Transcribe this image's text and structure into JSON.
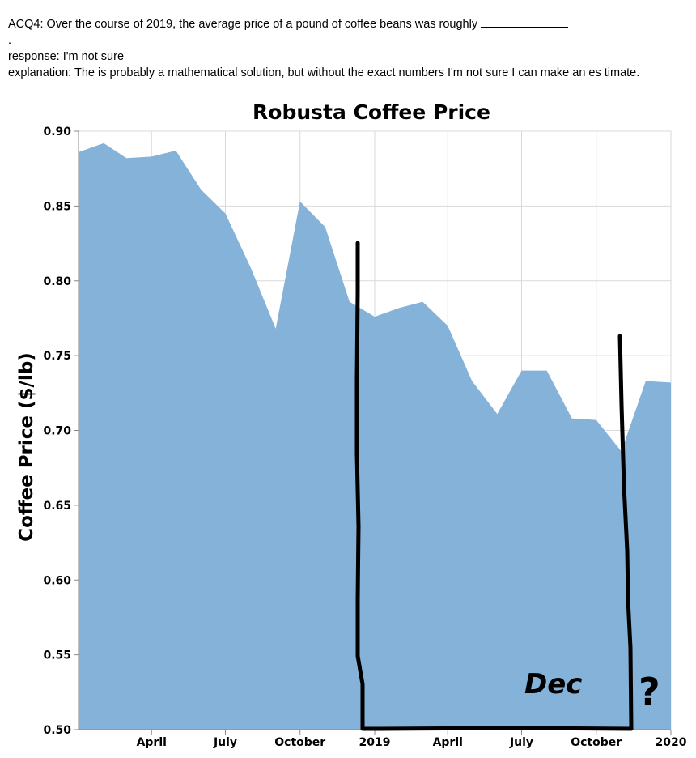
{
  "question": {
    "prefix": "ACQ4: Over the course of 2019, the average price of a pound of coffee beans was roughly",
    "period": "."
  },
  "response": "response: I'm not sure",
  "explanation": "explanation: The is probably a mathematical solution, but without the exact numbers I'm not sure I can make an es timate.",
  "annotation": {
    "month": "Dec",
    "mark": "?"
  },
  "colors": {
    "area": "#85b2d8",
    "grid": "#d9d9d9",
    "ink": "#000000"
  },
  "chart_data": {
    "type": "area",
    "title": "Robusta Coffee Price",
    "xlabel": "",
    "ylabel": "Coffee Price ($/lb)",
    "ylim": [
      0.5,
      0.9
    ],
    "y_ticks": [
      "0.50",
      "0.55",
      "0.60",
      "0.65",
      "0.70",
      "0.75",
      "0.80",
      "0.85",
      "0.90"
    ],
    "x_ticks": [
      {
        "label": "April",
        "date": "2018-04-01"
      },
      {
        "label": "July",
        "date": "2018-07-01"
      },
      {
        "label": "October",
        "date": "2018-10-01"
      },
      {
        "label": "2019",
        "date": "2019-01-01"
      },
      {
        "label": "April",
        "date": "2019-04-01"
      },
      {
        "label": "July",
        "date": "2019-07-01"
      },
      {
        "label": "October",
        "date": "2019-10-01"
      },
      {
        "label": "2020",
        "date": "2020-01-01"
      }
    ],
    "xlim": [
      "2018-01-01",
      "2020-01-01"
    ],
    "grid": true,
    "series": [
      {
        "x": [
          "2018-01-01",
          "2018-02-01",
          "2018-03-01",
          "2018-04-01",
          "2018-05-01",
          "2018-06-01",
          "2018-07-01",
          "2018-08-01",
          "2018-09-01",
          "2018-10-01",
          "2018-11-01",
          "2018-12-01",
          "2019-01-01",
          "2019-02-01",
          "2019-03-01",
          "2019-04-01",
          "2019-05-01",
          "2019-06-01",
          "2019-07-01",
          "2019-08-01",
          "2019-09-01",
          "2019-10-01",
          "2019-11-01",
          "2019-12-01",
          "2020-01-01"
        ],
        "values": [
          0.886,
          0.892,
          0.882,
          0.883,
          0.887,
          0.861,
          0.845,
          0.809,
          0.768,
          0.853,
          0.836,
          0.786,
          0.776,
          0.782,
          0.786,
          0.77,
          0.733,
          0.711,
          0.74,
          0.74,
          0.708,
          0.707,
          0.686,
          0.733,
          0.732
        ]
      }
    ]
  }
}
